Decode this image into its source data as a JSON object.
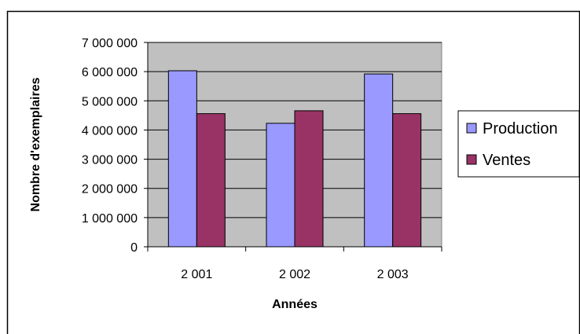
{
  "chart_data": {
    "type": "bar",
    "xlabel": "Années",
    "ylabel": "Nombre d'exemplaires",
    "categories": [
      "2 001",
      "2 002",
      "2 003"
    ],
    "ylim": [
      0,
      7000000
    ],
    "yticks": [
      0,
      1000000,
      2000000,
      3000000,
      4000000,
      5000000,
      6000000,
      7000000
    ],
    "ytick_labels": [
      "0",
      "1 000 000",
      "2 000 000",
      "3 000 000",
      "4 000 000",
      "5 000 000",
      "6 000 000",
      "7 000 000"
    ],
    "grid": true,
    "legend_position": "right",
    "series": [
      {
        "name": "Production",
        "color": "#9999FF",
        "values": [
          6030000,
          4230000,
          5920000
        ]
      },
      {
        "name": "Ventes",
        "color": "#993366",
        "values": [
          4560000,
          4660000,
          4560000
        ]
      }
    ],
    "plot_background": "#C0C0C0"
  }
}
